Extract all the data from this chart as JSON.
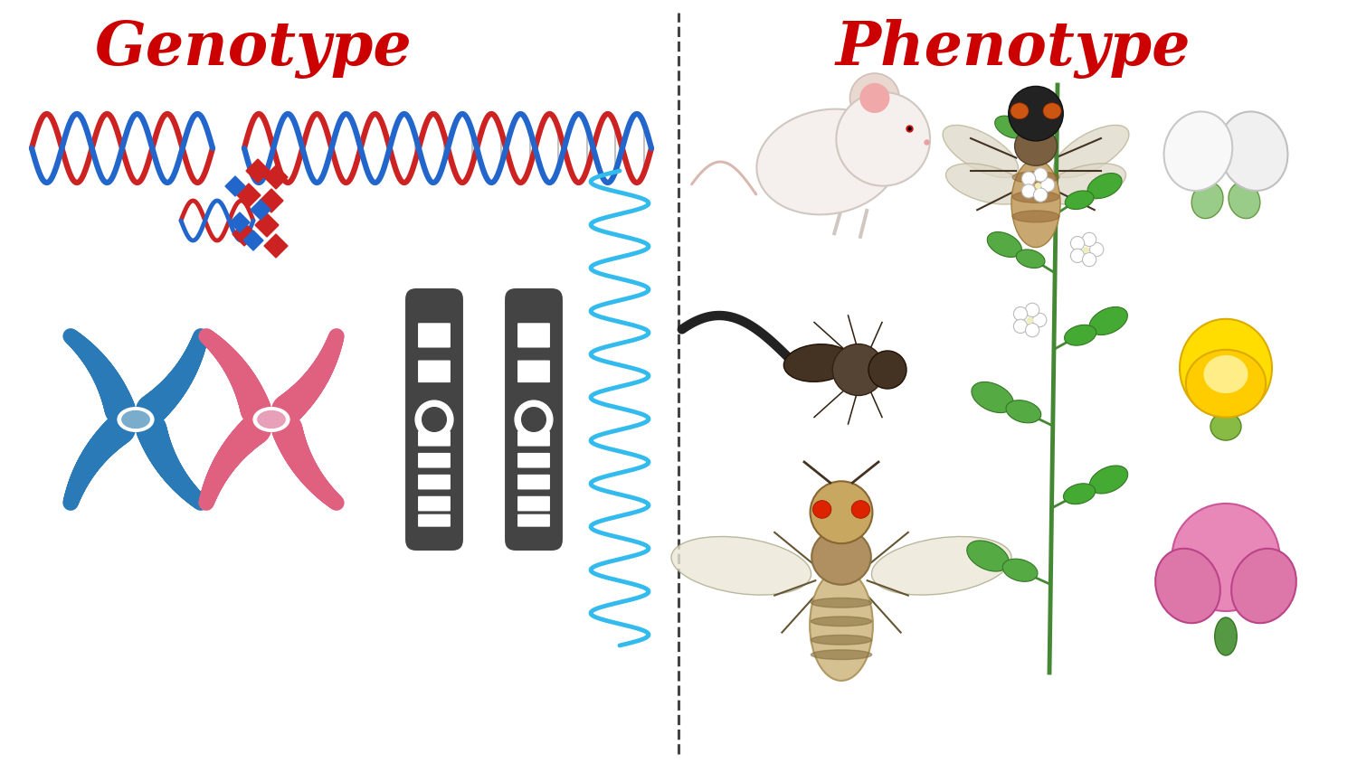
{
  "background_color": "#ffffff",
  "genotype_title": "Genotype",
  "phenotype_title": "Phenotype",
  "title_color": "#cc0000",
  "title_fontsize": 48,
  "divider_color": "#444444",
  "fig_width": 15.0,
  "fig_height": 8.44,
  "dna_color1": "#cc2222",
  "dna_color2": "#2266cc",
  "chr_blue": "#2a7ab8",
  "chr_pink": "#e06080",
  "chr_dark": "#444444",
  "rna_color": "#33bbee"
}
